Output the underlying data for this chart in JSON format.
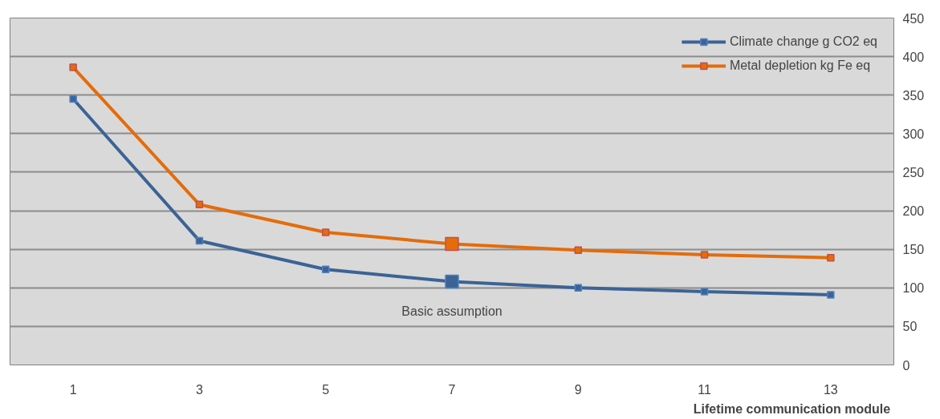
{
  "chart_data": {
    "type": "line",
    "xlabel": "Lifetime communication  module",
    "categories": [
      "1",
      "3",
      "5",
      "7",
      "9",
      "11",
      "13"
    ],
    "series": [
      {
        "name": "Climate change g CO2 eq",
        "color": "#3b6396",
        "values": [
          345,
          161,
          124,
          108,
          100,
          95,
          91
        ]
      },
      {
        "name": "Metal depletion kg Fe eq",
        "color": "#e46c0a",
        "values": [
          386,
          208,
          172,
          157,
          149,
          143,
          139
        ]
      }
    ],
    "ylim": [
      0,
      450
    ],
    "yticks": [
      0,
      50,
      100,
      150,
      200,
      250,
      300,
      350,
      400,
      450
    ],
    "annotations": [
      {
        "text": "Basic assumption",
        "x": "7",
        "y": 108
      }
    ],
    "grid": "y",
    "legend": "top right",
    "marker": "square",
    "line_style": "solid"
  }
}
